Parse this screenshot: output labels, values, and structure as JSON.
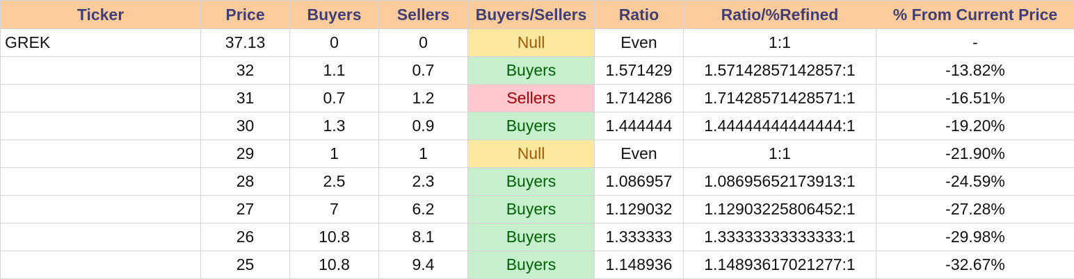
{
  "headers": [
    "Ticker",
    "Price",
    "Buyers",
    "Sellers",
    "Buyers/Sellers",
    "Ratio",
    "Ratio/%Refined",
    "% From Current Price"
  ],
  "rows": [
    [
      "GREK",
      "37.13",
      "0",
      "0",
      "Null",
      "Even",
      "1:1",
      "-"
    ],
    [
      "",
      "32",
      "1.1",
      "0.7",
      "Buyers",
      "1.571429",
      "1.57142857142857:1",
      "-13.82%"
    ],
    [
      "",
      "31",
      "0.7",
      "1.2",
      "Sellers",
      "1.714286",
      "1.71428571428571:1",
      "-16.51%"
    ],
    [
      "",
      "30",
      "1.3",
      "0.9",
      "Buyers",
      "1.444444",
      "1.44444444444444:1",
      "-19.20%"
    ],
    [
      "",
      "29",
      "1",
      "1",
      "Null",
      "Even",
      "1:1",
      "-21.90%"
    ],
    [
      "",
      "28",
      "2.5",
      "2.3",
      "Buyers",
      "1.086957",
      "1.08695652173913:1",
      "-24.59%"
    ],
    [
      "",
      "27",
      "7",
      "6.2",
      "Buyers",
      "1.129032",
      "1.12903225806452:1",
      "-27.28%"
    ],
    [
      "",
      "26",
      "10.8",
      "8.1",
      "Buyers",
      "1.333333",
      "1.33333333333333:1",
      "-29.98%"
    ],
    [
      "",
      "25",
      "10.8",
      "9.4",
      "Buyers",
      "1.148936",
      "1.14893617021277:1",
      "-32.67%"
    ]
  ],
  "colors": {
    "header_bg": "#fdcc9d",
    "header_text": "#3f3f76",
    "null_bg": "#fde89f",
    "null_text": "#9c5b0b",
    "buyers_bg": "#c6efce",
    "buyers_text": "#006100",
    "sellers_bg": "#ffc7ce",
    "sellers_text": "#9c0006"
  }
}
